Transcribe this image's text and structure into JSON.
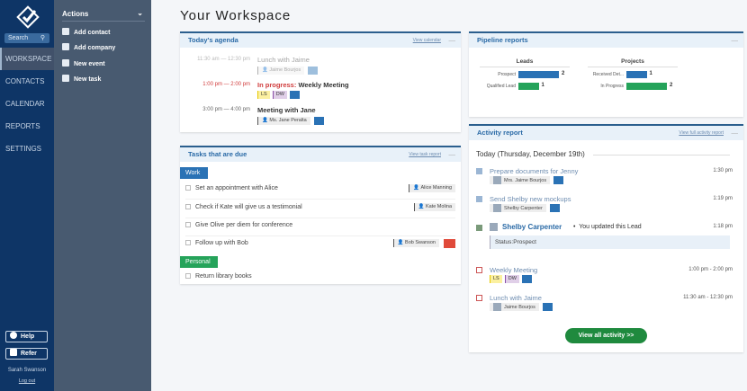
{
  "sidebar": {
    "search_label": "Search",
    "nav": [
      "WORKSPACE",
      "CONTACTS",
      "CALENDAR",
      "REPORTS",
      "SETTINGS"
    ],
    "help": "Help",
    "refer": "Refer",
    "user": "Sarah Swanson",
    "logout": "Log out"
  },
  "actions": {
    "title": "Actions",
    "items": [
      "Add contact",
      "Add company",
      "New event",
      "New task"
    ]
  },
  "page_title": "Your Workspace",
  "agenda": {
    "title": "Today's agenda",
    "link": "View calendar",
    "events": [
      {
        "time": "11:30 am  —  12:30 pm",
        "title": "Lunch with Jaime",
        "contact": "Jaime Bourjos"
      },
      {
        "time": "1:00 pm  —  2:00 pm",
        "status": "In progress:",
        "title": "Weekly Meeting",
        "tags": [
          "LS",
          "DW"
        ]
      },
      {
        "time": "3:00 pm  —  4:00 pm",
        "title": "Meeting with Jane",
        "contact": "Ms. Jane Peralta"
      }
    ]
  },
  "tasks": {
    "title": "Tasks that are due",
    "link": "View task report",
    "groups": [
      {
        "name": "Work",
        "color": "#2a72b5",
        "items": [
          {
            "text": "Set an appointment with Alice",
            "contact": "Alice Manning"
          },
          {
            "text": "Check if Kate will give us a testimonial",
            "contact": "Kate Molina"
          },
          {
            "text": "Give Olive per diem for conference"
          },
          {
            "text": "Follow up with Bob",
            "contact": "Bob Swanson"
          }
        ]
      },
      {
        "name": "Personal",
        "color": "#25a35a",
        "items": [
          {
            "text": "Return library books"
          }
        ]
      }
    ]
  },
  "pipeline": {
    "title": "Pipeline reports",
    "charts": [
      {
        "title": "Leads",
        "rows": [
          {
            "label": "Prospect",
            "value": 2,
            "color": "#2a72b5"
          },
          {
            "label": "Qualified Lead",
            "value": 1,
            "color": "#25a35a"
          }
        ]
      },
      {
        "title": "Projects",
        "rows": [
          {
            "label": "Received Det...",
            "value": 1,
            "color": "#2a72b5"
          },
          {
            "label": "In Progress",
            "value": 2,
            "color": "#25a35a"
          }
        ]
      }
    ]
  },
  "activity": {
    "title": "Activity report",
    "link": "View full activity report",
    "day": "Today (Thursday, December 19th)",
    "items": [
      {
        "title": "Prepare documents for Jenny",
        "time": "1:30 pm",
        "contact": "Mrs. Jaime Bourjos"
      },
      {
        "title": "Send Shelby new mockups",
        "time": "1:19 pm",
        "contact": "Shelby Carpenter"
      },
      {
        "title": "Shelby Carpenter",
        "note": "You updated this Lead",
        "time": "1:18 pm",
        "detail": "Status:Prospect"
      },
      {
        "title": "Weekly Meeting",
        "time": "1:00 pm - 2:00 pm",
        "tags": [
          "LS",
          "DW"
        ]
      },
      {
        "title": "Lunch with Jaime",
        "time": "11:30 am - 12:30 pm",
        "contact": "Jaime Bourjos"
      }
    ],
    "button": "View all activity >>"
  }
}
